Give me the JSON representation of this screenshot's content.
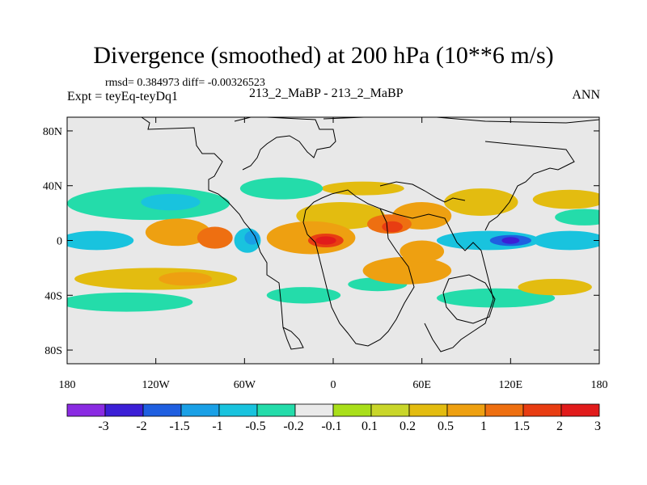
{
  "title": "Divergence (smoothed) at 200 hPa (10**6 m/s)",
  "stats": {
    "label": "rmsd= 0.384973 diff= -0.00326523"
  },
  "expt": {
    "label": "Expt = teyEq-teyDq1"
  },
  "case": {
    "label": "213_2_MaBP - 213_2_MaBP"
  },
  "season": {
    "label": "ANN"
  },
  "map": {
    "lon_range": [
      -180,
      180
    ],
    "lat_range": [
      -90,
      90
    ],
    "lat_ticks": [
      {
        "value": 80,
        "label": "80N"
      },
      {
        "value": 40,
        "label": "40N"
      },
      {
        "value": 0,
        "label": "0"
      },
      {
        "value": -40,
        "label": "40S"
      },
      {
        "value": -80,
        "label": "80S"
      }
    ],
    "lon_ticks": [
      {
        "value": -180,
        "label": "180"
      },
      {
        "value": -120,
        "label": "120W"
      },
      {
        "value": -60,
        "label": "60W"
      },
      {
        "value": 0,
        "label": "0"
      },
      {
        "value": 60,
        "label": "60E"
      },
      {
        "value": 120,
        "label": "120E"
      },
      {
        "value": 180,
        "label": "180"
      }
    ],
    "background_color": "#e8e8e8"
  },
  "colorbar": {
    "colors": [
      "#8a2be2",
      "#3c1fd6",
      "#1f5fe0",
      "#1aa0e6",
      "#19c3de",
      "#24dcaa",
      "#eaeaea",
      "#a9df1a",
      "#c9d62a",
      "#e3bc10",
      "#eea011",
      "#ee6f11",
      "#e83d12",
      "#e11b1b"
    ],
    "labels": [
      "-3",
      "-2",
      "-1.5",
      "-1",
      "-0.5",
      "-0.2",
      "-0.1",
      "0.1",
      "0.2",
      "0.5",
      "1",
      "1.5",
      "2",
      "3"
    ]
  },
  "field_blobs": [
    {
      "region": "tropical-band-w",
      "lon": -160,
      "lat": 0,
      "dlon": 25,
      "dlat": 7,
      "value": -0.6
    },
    {
      "region": "tropical-band-e",
      "lon": 160,
      "lat": 0,
      "dlon": 25,
      "dlat": 7,
      "value": -0.6
    },
    {
      "region": "north-pacific",
      "lon": -125,
      "lat": 27,
      "dlon": 55,
      "dlat": 12,
      "value": -0.4
    },
    {
      "region": "north-pacific-core",
      "lon": -110,
      "lat": 28,
      "dlon": 20,
      "dlat": 6,
      "value": -1.0
    },
    {
      "region": "mexico-high",
      "lon": -105,
      "lat": 6,
      "dlon": 22,
      "dlat": 10,
      "value": 0.6
    },
    {
      "region": "east-pacific",
      "lon": -80,
      "lat": 2,
      "dlon": 12,
      "dlat": 8,
      "value": 1.1
    },
    {
      "region": "amazon-cold",
      "lon": -58,
      "lat": 0,
      "dlon": 9,
      "dlat": 9,
      "value": -0.8
    },
    {
      "region": "amazon-core",
      "lon": -55,
      "lat": 2,
      "dlon": 5,
      "dlat": 5,
      "value": -1.4
    },
    {
      "region": "atlantic-warm",
      "lon": -15,
      "lat": 2,
      "dlon": 30,
      "dlat": 12,
      "value": 0.5
    },
    {
      "region": "gulf-of-guinea",
      "lon": -5,
      "lat": 0,
      "dlon": 12,
      "dlat": 5,
      "value": 1.8
    },
    {
      "region": "gulf-core",
      "lon": -5,
      "lat": 0,
      "dlon": 7,
      "dlat": 3,
      "value": 2.5
    },
    {
      "region": "n-africa-rim",
      "lon": 5,
      "lat": 18,
      "dlon": 30,
      "dlat": 10,
      "value": 0.35
    },
    {
      "region": "arabia",
      "lon": 38,
      "lat": 12,
      "dlon": 15,
      "dlat": 7,
      "value": 1.2
    },
    {
      "region": "arabia-core",
      "lon": 40,
      "lat": 10,
      "dlon": 7,
      "dlat": 4,
      "value": 1.8
    },
    {
      "region": "mideast",
      "lon": 60,
      "lat": 18,
      "dlon": 20,
      "dlat": 10,
      "value": 0.5
    },
    {
      "region": "indian-ocean-s",
      "lon": 50,
      "lat": -22,
      "dlon": 30,
      "dlat": 10,
      "value": 0.5
    },
    {
      "region": "madagascar",
      "lon": 60,
      "lat": -8,
      "dlon": 15,
      "dlat": 8,
      "value": 0.9
    },
    {
      "region": "warm-pool-cold",
      "lon": 105,
      "lat": 0,
      "dlon": 35,
      "dlat": 7,
      "value": -0.9
    },
    {
      "region": "warm-pool-core",
      "lon": 120,
      "lat": 0,
      "dlon": 14,
      "dlat": 4,
      "value": -2.0
    },
    {
      "region": "warm-pool-peak",
      "lon": 120,
      "lat": 0,
      "dlon": 6,
      "dlat": 2.5,
      "value": -2.6
    },
    {
      "region": "south-pacific-band",
      "lon": -120,
      "lat": -28,
      "dlon": 55,
      "dlat": 8,
      "value": 0.4
    },
    {
      "region": "south-pacific-core",
      "lon": -100,
      "lat": -28,
      "dlon": 18,
      "dlat": 5,
      "value": 0.7
    },
    {
      "region": "s-indian-cold",
      "lon": 30,
      "lat": -32,
      "dlon": 20,
      "dlat": 5,
      "value": -0.3
    },
    {
      "region": "s-atlantic-cold",
      "lon": -20,
      "lat": -40,
      "dlon": 25,
      "dlat": 6,
      "value": -0.4
    },
    {
      "region": "southern-ocean-cold",
      "lon": -140,
      "lat": -45,
      "dlon": 45,
      "dlat": 7,
      "value": -0.35
    },
    {
      "region": "southern-ocean-cold2",
      "lon": 110,
      "lat": -42,
      "dlon": 40,
      "dlat": 7,
      "value": -0.35
    },
    {
      "region": "southern-ocean-warm",
      "lon": 150,
      "lat": -34,
      "dlon": 25,
      "dlat": 6,
      "value": 0.35
    },
    {
      "region": "north-atlantic-cold",
      "lon": -35,
      "lat": 38,
      "dlon": 28,
      "dlat": 8,
      "value": -0.35
    },
    {
      "region": "mid-lat-n-warm",
      "lon": 20,
      "lat": 38,
      "dlon": 28,
      "dlat": 5,
      "value": 0.25
    },
    {
      "region": "n-pacific-warm",
      "lon": 160,
      "lat": 30,
      "dlon": 25,
      "dlat": 7,
      "value": 0.3
    },
    {
      "region": "n-pacific-cold2",
      "lon": 170,
      "lat": 17,
      "dlon": 20,
      "dlat": 6,
      "value": -0.35
    },
    {
      "region": "china-warm",
      "lon": 100,
      "lat": 28,
      "dlon": 25,
      "dlat": 10,
      "value": 0.35
    }
  ]
}
